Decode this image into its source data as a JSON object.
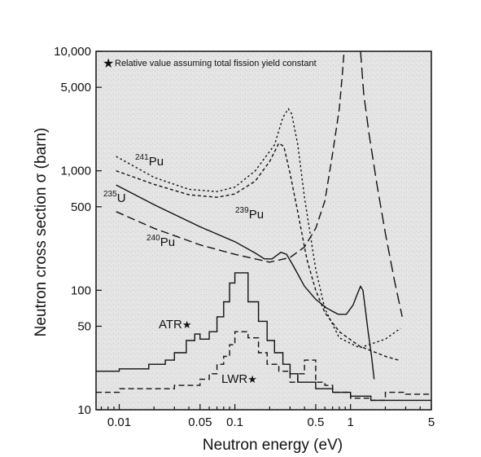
{
  "chart_data": {
    "type": "line",
    "title": "",
    "xlabel": "Neutron energy (eV)",
    "ylabel": "Neutron cross section σ (barn)",
    "xscale": "log",
    "yscale": "log",
    "xlim": [
      0.0063,
      5
    ],
    "ylim": [
      10,
      10000
    ],
    "background": "#e6e6e6",
    "note": "Relative value assuming total fission yield constant",
    "x_ticks": [
      {
        "value": 0.01,
        "label": "0.01"
      },
      {
        "value": 0.05,
        "label": "0.05"
      },
      {
        "value": 0.1,
        "label": "0.1"
      },
      {
        "value": 0.5,
        "label": "0.5"
      },
      {
        "value": 1,
        "label": "1"
      },
      {
        "value": 5,
        "label": "5"
      }
    ],
    "y_ticks": [
      {
        "value": 10,
        "label": "10"
      },
      {
        "value": 50,
        "label": "50"
      },
      {
        "value": 100,
        "label": "100"
      },
      {
        "value": 500,
        "label": "500"
      },
      {
        "value": 1000,
        "label": "1,000"
      },
      {
        "value": 5000,
        "label": "5,000"
      },
      {
        "value": 10000,
        "label": "10,000"
      }
    ],
    "series": [
      {
        "name": "235U",
        "label_sup": "235",
        "label_main": "U",
        "style": "solid",
        "points": [
          [
            0.0094,
            760
          ],
          [
            0.02,
            520
          ],
          [
            0.05,
            340
          ],
          [
            0.1,
            255
          ],
          [
            0.15,
            205
          ],
          [
            0.18,
            183
          ],
          [
            0.21,
            183
          ],
          [
            0.25,
            208
          ],
          [
            0.28,
            200
          ],
          [
            0.32,
            160
          ],
          [
            0.4,
            108
          ],
          [
            0.5,
            84
          ],
          [
            0.62,
            71
          ],
          [
            0.78,
            63
          ],
          [
            0.92,
            63
          ],
          [
            1.05,
            75
          ],
          [
            1.15,
            94
          ],
          [
            1.22,
            108
          ],
          [
            1.28,
            100
          ],
          [
            1.33,
            75
          ],
          [
            1.42,
            45
          ],
          [
            1.52,
            28
          ],
          [
            1.6,
            18
          ]
        ]
      },
      {
        "name": "239Pu",
        "label_sup": "239",
        "label_main": "Pu",
        "style": "dash-dot-fine",
        "points": [
          [
            0.0094,
            1000
          ],
          [
            0.02,
            770
          ],
          [
            0.04,
            630
          ],
          [
            0.07,
            600
          ],
          [
            0.1,
            640
          ],
          [
            0.15,
            820
          ],
          [
            0.2,
            1200
          ],
          [
            0.24,
            1700
          ],
          [
            0.265,
            1600
          ],
          [
            0.3,
            950
          ],
          [
            0.35,
            450
          ],
          [
            0.42,
            180
          ],
          [
            0.5,
            100
          ],
          [
            0.6,
            65
          ],
          [
            0.8,
            45
          ],
          [
            1.2,
            34
          ],
          [
            2,
            28
          ],
          [
            2.6,
            26
          ]
        ]
      },
      {
        "name": "241Pu",
        "label_sup": "241",
        "label_main": "Pu",
        "style": "dotted",
        "points": [
          [
            0.0094,
            1320
          ],
          [
            0.02,
            880
          ],
          [
            0.04,
            700
          ],
          [
            0.07,
            670
          ],
          [
            0.1,
            730
          ],
          [
            0.15,
            1000
          ],
          [
            0.22,
            1650
          ],
          [
            0.26,
            2800
          ],
          [
            0.29,
            3300
          ],
          [
            0.31,
            3000
          ],
          [
            0.35,
            1650
          ],
          [
            0.4,
            600
          ],
          [
            0.5,
            150
          ],
          [
            0.6,
            70
          ],
          [
            0.8,
            40
          ],
          [
            1.2,
            33
          ],
          [
            2,
            39
          ],
          [
            2.7,
            48
          ]
        ]
      },
      {
        "name": "240Pu",
        "label_sup": "240",
        "label_main": "Pu",
        "style": "dashed",
        "points": [
          [
            0.0094,
            455
          ],
          [
            0.02,
            330
          ],
          [
            0.05,
            240
          ],
          [
            0.1,
            200
          ],
          [
            0.15,
            183
          ],
          [
            0.2,
            172
          ],
          [
            0.3,
            188
          ],
          [
            0.4,
            230
          ],
          [
            0.5,
            330
          ],
          [
            0.6,
            560
          ],
          [
            0.7,
            1400
          ],
          [
            0.8,
            3300
          ],
          [
            0.85,
            6500
          ],
          [
            0.88,
            10000
          ]
        ]
      },
      {
        "name": "240Pu resonance tail",
        "style": "dashed-long",
        "points": [
          [
            1.22,
            10000
          ],
          [
            1.3,
            4400
          ],
          [
            1.45,
            2000
          ],
          [
            1.7,
            750
          ],
          [
            2,
            300
          ],
          [
            2.4,
            120
          ],
          [
            2.8,
            60
          ]
        ]
      }
    ],
    "spectra": [
      {
        "name": "ATR",
        "marker": "★",
        "style": "solid-step",
        "points": [
          [
            0.0063,
            21
          ],
          [
            0.01,
            21
          ],
          [
            0.01,
            22
          ],
          [
            0.018,
            22
          ],
          [
            0.018,
            24
          ],
          [
            0.025,
            24
          ],
          [
            0.025,
            26
          ],
          [
            0.03,
            26
          ],
          [
            0.03,
            30
          ],
          [
            0.038,
            30
          ],
          [
            0.038,
            38
          ],
          [
            0.045,
            38
          ],
          [
            0.045,
            43
          ],
          [
            0.05,
            43
          ],
          [
            0.05,
            39
          ],
          [
            0.06,
            39
          ],
          [
            0.06,
            45
          ],
          [
            0.07,
            45
          ],
          [
            0.07,
            60
          ],
          [
            0.08,
            60
          ],
          [
            0.08,
            80
          ],
          [
            0.09,
            80
          ],
          [
            0.09,
            115
          ],
          [
            0.1,
            115
          ],
          [
            0.1,
            140
          ],
          [
            0.13,
            140
          ],
          [
            0.13,
            80
          ],
          [
            0.16,
            80
          ],
          [
            0.16,
            55
          ],
          [
            0.19,
            55
          ],
          [
            0.19,
            38
          ],
          [
            0.22,
            38
          ],
          [
            0.22,
            30
          ],
          [
            0.26,
            30
          ],
          [
            0.26,
            24
          ],
          [
            0.3,
            24
          ],
          [
            0.3,
            20
          ],
          [
            0.35,
            20
          ],
          [
            0.35,
            17
          ],
          [
            0.5,
            17
          ],
          [
            0.5,
            15
          ],
          [
            0.7,
            15
          ],
          [
            0.7,
            14
          ],
          [
            1,
            14
          ],
          [
            1,
            13
          ],
          [
            1.5,
            13
          ],
          [
            1.5,
            12
          ],
          [
            5,
            12
          ]
        ]
      },
      {
        "name": "LWR",
        "marker": "★",
        "style": "dashed-step",
        "points": [
          [
            0.0063,
            14
          ],
          [
            0.01,
            14
          ],
          [
            0.01,
            15
          ],
          [
            0.03,
            15
          ],
          [
            0.03,
            16
          ],
          [
            0.05,
            16
          ],
          [
            0.05,
            18
          ],
          [
            0.06,
            18
          ],
          [
            0.06,
            20
          ],
          [
            0.07,
            20
          ],
          [
            0.07,
            24
          ],
          [
            0.08,
            24
          ],
          [
            0.08,
            28
          ],
          [
            0.09,
            28
          ],
          [
            0.09,
            35
          ],
          [
            0.1,
            35
          ],
          [
            0.1,
            45
          ],
          [
            0.13,
            45
          ],
          [
            0.13,
            40
          ],
          [
            0.16,
            40
          ],
          [
            0.16,
            30
          ],
          [
            0.19,
            30
          ],
          [
            0.19,
            24
          ],
          [
            0.24,
            24
          ],
          [
            0.24,
            21
          ],
          [
            0.3,
            21
          ],
          [
            0.3,
            17
          ],
          [
            0.35,
            17
          ],
          [
            0.35,
            20
          ],
          [
            0.4,
            20
          ],
          [
            0.4,
            26
          ],
          [
            0.5,
            26
          ],
          [
            0.5,
            17
          ],
          [
            0.6,
            17
          ],
          [
            0.6,
            16
          ],
          [
            0.7,
            16
          ],
          [
            0.7,
            14
          ],
          [
            1,
            14
          ],
          [
            1,
            12.5
          ],
          [
            1.5,
            12.5
          ],
          [
            1.5,
            12
          ],
          [
            2,
            12
          ],
          [
            2,
            14
          ],
          [
            3,
            14
          ],
          [
            3,
            13.5
          ],
          [
            5,
            13.5
          ]
        ]
      }
    ]
  }
}
